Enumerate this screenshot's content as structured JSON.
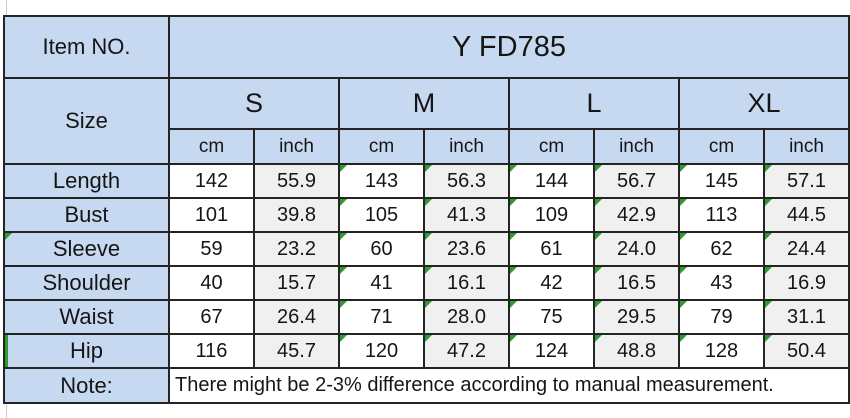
{
  "header": {
    "item_no_label": "Item NO.",
    "item_no_value": "Y FD785",
    "size_label": "Size",
    "note_label": "Note:",
    "note_text": "There might be 2-3% difference according to manual measurement."
  },
  "sizes": [
    "S",
    "M",
    "L",
    "XL"
  ],
  "unit_labels": [
    "cm",
    "inch"
  ],
  "rows": [
    {
      "label": "Length",
      "values": [
        "142",
        "55.9",
        "143",
        "56.3",
        "144",
        "56.7",
        "145",
        "57.1"
      ],
      "value_markers": [
        false,
        false,
        true,
        true,
        true,
        true,
        true,
        true
      ],
      "label_marker": false,
      "label_strip": false
    },
    {
      "label": "Bust",
      "values": [
        "101",
        "39.8",
        "105",
        "41.3",
        "109",
        "42.9",
        "113",
        "44.5"
      ],
      "value_markers": [
        false,
        false,
        true,
        true,
        true,
        true,
        true,
        true
      ],
      "label_marker": false,
      "label_strip": false
    },
    {
      "label": "Sleeve",
      "values": [
        "59",
        "23.2",
        "60",
        "23.6",
        "61",
        "24.0",
        "62",
        "24.4"
      ],
      "value_markers": [
        false,
        false,
        true,
        true,
        true,
        true,
        true,
        true
      ],
      "label_marker": true,
      "label_strip": false
    },
    {
      "label": "Shoulder",
      "values": [
        "40",
        "15.7",
        "41",
        "16.1",
        "42",
        "16.5",
        "43",
        "16.9"
      ],
      "value_markers": [
        false,
        false,
        true,
        true,
        true,
        true,
        true,
        true
      ],
      "label_marker": false,
      "label_strip": false
    },
    {
      "label": "Waist",
      "values": [
        "67",
        "26.4",
        "71",
        "28.0",
        "75",
        "29.5",
        "79",
        "31.1"
      ],
      "value_markers": [
        false,
        false,
        true,
        true,
        true,
        true,
        true,
        true
      ],
      "label_marker": false,
      "label_strip": false
    },
    {
      "label": "Hip",
      "values": [
        "116",
        "45.7",
        "120",
        "47.2",
        "124",
        "48.8",
        "128",
        "50.4"
      ],
      "value_markers": [
        false,
        false,
        true,
        true,
        true,
        true,
        true,
        true
      ],
      "label_marker": false,
      "label_strip": true
    }
  ],
  "colors": {
    "header_bg": "#c6d9f1",
    "inch_column_bg": "#f0f0f0",
    "cm_column_bg": "#ffffff",
    "border": "#242424",
    "error_marker_green": "#2e9b2e"
  }
}
